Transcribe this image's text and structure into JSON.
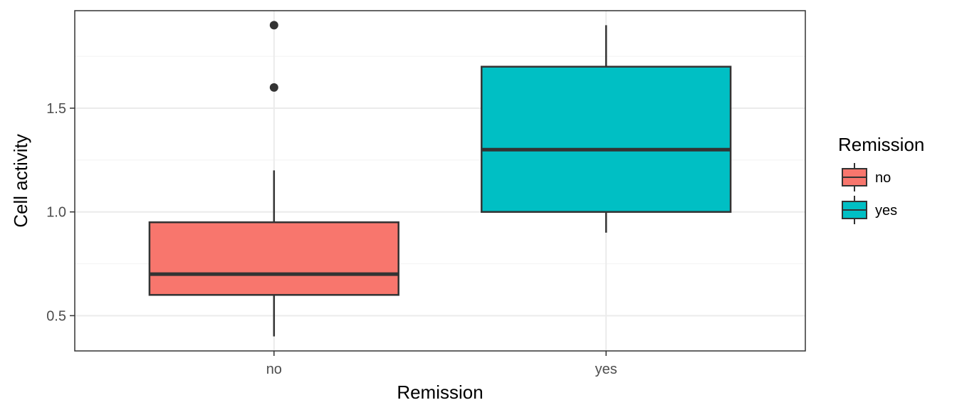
{
  "chart_data": {
    "type": "boxplot",
    "title": "",
    "xlabel": "Remission",
    "ylabel": "Cell activity",
    "categories": [
      "no",
      "yes"
    ],
    "boxes": [
      {
        "category": "no",
        "color": "#F8766D",
        "whisker_low": 0.4,
        "q1": 0.6,
        "median": 0.7,
        "q3": 0.95,
        "whisker_high": 1.2,
        "outliers": [
          1.6,
          1.9
        ]
      },
      {
        "category": "yes",
        "color": "#00BFC4",
        "whisker_low": 0.9,
        "q1": 1.0,
        "median": 1.3,
        "q3": 1.7,
        "whisker_high": 1.9,
        "outliers": []
      }
    ],
    "ylim": [
      0.33,
      1.97
    ],
    "yticks": [
      0.5,
      1.0,
      1.5
    ],
    "ytick_labels": [
      "0.5",
      "1.0",
      "1.5"
    ],
    "grid": true,
    "legend": {
      "title": "Remission",
      "position": "right",
      "entries": [
        {
          "label": "no",
          "color": "#F8766D"
        },
        {
          "label": "yes",
          "color": "#00BFC4"
        }
      ]
    }
  }
}
